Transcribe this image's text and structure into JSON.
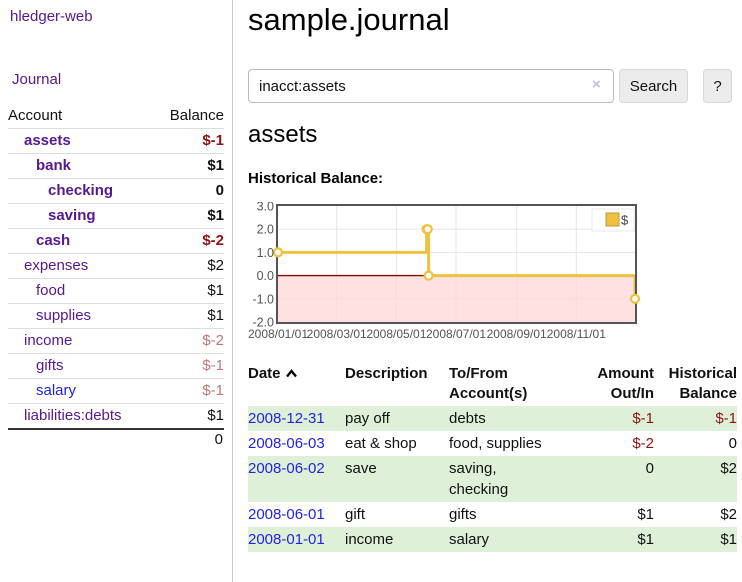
{
  "app": {
    "brand": "hledger-web"
  },
  "sidebar": {
    "journal_link": "Journal",
    "table": {
      "account_header": "Account",
      "balance_header": "Balance",
      "rows": [
        {
          "name": "assets",
          "balance": "$-1",
          "depth": 0,
          "bold": true,
          "neg": "strong",
          "link": "visited"
        },
        {
          "name": "bank",
          "balance": "$1",
          "depth": 1,
          "bold": true,
          "neg": "none",
          "link": "visited"
        },
        {
          "name": "checking",
          "balance": "0",
          "depth": 2,
          "bold": true,
          "neg": "none",
          "link": "visited"
        },
        {
          "name": "saving",
          "balance": "$1",
          "depth": 2,
          "bold": true,
          "neg": "none",
          "link": "visited"
        },
        {
          "name": "cash",
          "balance": "$-2",
          "depth": 1,
          "bold": true,
          "neg": "strong",
          "link": "visited"
        },
        {
          "name": "expenses",
          "balance": "$2",
          "depth": 0,
          "bold": false,
          "neg": "none",
          "link": "visited"
        },
        {
          "name": "food",
          "balance": "$1",
          "depth": 1,
          "bold": false,
          "neg": "none",
          "link": "visited"
        },
        {
          "name": "supplies",
          "balance": "$1",
          "depth": 1,
          "bold": false,
          "neg": "none",
          "link": "visited"
        },
        {
          "name": "income",
          "balance": "$-2",
          "depth": 0,
          "bold": false,
          "neg": "muted",
          "link": "visited"
        },
        {
          "name": "gifts",
          "balance": "$-1",
          "depth": 1,
          "bold": false,
          "neg": "muted",
          "link": "visited"
        },
        {
          "name": "salary",
          "balance": "$-1",
          "depth": 1,
          "bold": false,
          "neg": "muted",
          "link": "unvisited"
        },
        {
          "name": "liabilities:debts",
          "balance": "$1",
          "depth": 0,
          "bold": false,
          "neg": "none",
          "link": "visited"
        }
      ],
      "total": "0"
    }
  },
  "header": {
    "title": "sample.journal"
  },
  "search": {
    "value": "inacct:assets",
    "clear_icon": "×",
    "button": "Search",
    "help": "?"
  },
  "account_page": {
    "title": "assets",
    "chart_label": "Historical Balance:"
  },
  "chart_data": {
    "type": "line",
    "steps": true,
    "title": "Historical Balance:",
    "series": [
      {
        "name": "$",
        "color": "#EDC240",
        "points": [
          [
            "2008-01-01",
            1
          ],
          [
            "2008-06-01",
            2
          ],
          [
            "2008-06-02",
            2
          ],
          [
            "2008-06-03",
            0
          ],
          [
            "2008-12-31",
            -1
          ]
        ]
      }
    ],
    "xlim": [
      "2008-01-01",
      "2008-12-31"
    ],
    "ylim": [
      -2,
      3
    ],
    "x_ticks": [
      "2008/01/01",
      "2008/03/01",
      "2008/05/01",
      "2008/07/01",
      "2008/09/01",
      "2008/11/01"
    ],
    "y_ticks": [
      "3.0",
      "2.0",
      "1.0",
      "0.0",
      "-1.0",
      "-2.0"
    ],
    "grid": true,
    "legend_position": "top-right",
    "negative_region_color": "#ffd6d6",
    "zero_line_color": "#8b0000",
    "axis_text_color": "#545454",
    "border_color": "#545454",
    "gridline_color": "#e6e6e6"
  },
  "register": {
    "columns": {
      "date": "Date",
      "description": "Description",
      "accounts": "To/From Account(s)",
      "amount": "Amount Out/In",
      "balance": "Historical Balance"
    },
    "sort_ascending": true,
    "rows": [
      {
        "date": "2008-12-31",
        "description": "pay off",
        "accounts": "debts",
        "amount": "$-1",
        "balance": "$-1",
        "amount_neg": true,
        "balance_neg": true
      },
      {
        "date": "2008-06-03",
        "description": "eat & shop",
        "accounts": "food, supplies",
        "amount": "$-2",
        "balance": "0",
        "amount_neg": true,
        "balance_neg": false
      },
      {
        "date": "2008-06-02",
        "description": "save",
        "accounts": "saving, checking",
        "amount": "0",
        "balance": "$2",
        "amount_neg": false,
        "balance_neg": false
      },
      {
        "date": "2008-06-01",
        "description": "gift",
        "accounts": "gifts",
        "amount": "$1",
        "balance": "$2",
        "amount_neg": false,
        "balance_neg": false
      },
      {
        "date": "2008-01-01",
        "description": "income",
        "accounts": "salary",
        "amount": "$1",
        "balance": "$1",
        "amount_neg": false,
        "balance_neg": false
      }
    ]
  },
  "colors": {
    "link_purple": "#551a8b",
    "link_blue": "#2323dd",
    "negative_strong": "#8b1414",
    "negative_muted": "#bd7a7a",
    "row_stripe_green": "#dff0d8",
    "chart_line_gold": "#EDC240",
    "axis_text": "#545454",
    "negative_region_pink": "#ffd6d6",
    "zero_line_red": "#8b0000"
  }
}
